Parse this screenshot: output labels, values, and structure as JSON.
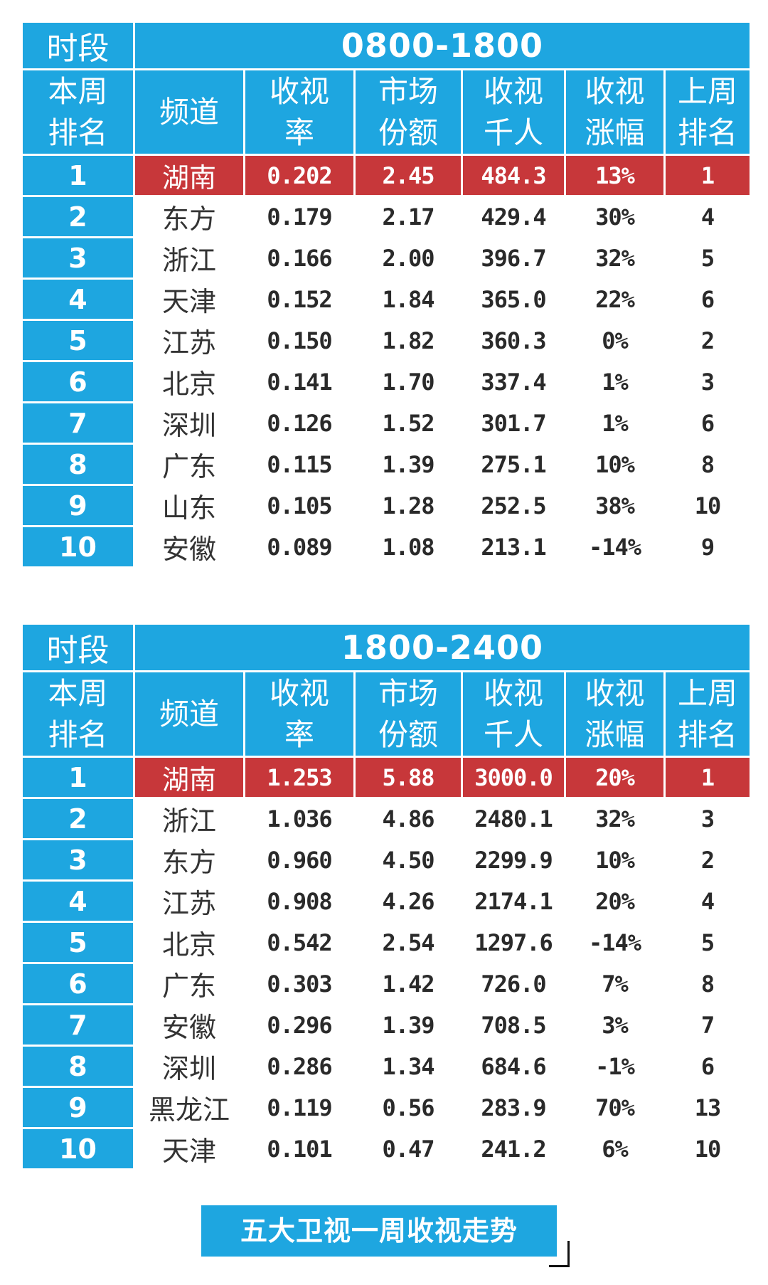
{
  "headers": {
    "slot": "时段",
    "rank_this_week": [
      "本周",
      "排名"
    ],
    "channel": "频道",
    "rating": [
      "收视",
      "率"
    ],
    "share": [
      "市场",
      "份额"
    ],
    "viewers": [
      "收视",
      "千人"
    ],
    "change": [
      "收视",
      "涨幅"
    ],
    "rank_last_week": [
      "上周",
      "排名"
    ]
  },
  "tables": [
    {
      "slot": "0800-1800",
      "rows": [
        {
          "rank": "1",
          "channel": "湖南",
          "rating": "0.202",
          "share": "2.45",
          "viewers": "484.3",
          "change": "13%",
          "last": "1"
        },
        {
          "rank": "2",
          "channel": "东方",
          "rating": "0.179",
          "share": "2.17",
          "viewers": "429.4",
          "change": "30%",
          "last": "4"
        },
        {
          "rank": "3",
          "channel": "浙江",
          "rating": "0.166",
          "share": "2.00",
          "viewers": "396.7",
          "change": "32%",
          "last": "5"
        },
        {
          "rank": "4",
          "channel": "天津",
          "rating": "0.152",
          "share": "1.84",
          "viewers": "365.0",
          "change": "22%",
          "last": "6"
        },
        {
          "rank": "5",
          "channel": "江苏",
          "rating": "0.150",
          "share": "1.82",
          "viewers": "360.3",
          "change": "0%",
          "last": "2"
        },
        {
          "rank": "6",
          "channel": "北京",
          "rating": "0.141",
          "share": "1.70",
          "viewers": "337.4",
          "change": "1%",
          "last": "3"
        },
        {
          "rank": "7",
          "channel": "深圳",
          "rating": "0.126",
          "share": "1.52",
          "viewers": "301.7",
          "change": "1%",
          "last": "6"
        },
        {
          "rank": "8",
          "channel": "广东",
          "rating": "0.115",
          "share": "1.39",
          "viewers": "275.1",
          "change": "10%",
          "last": "8"
        },
        {
          "rank": "9",
          "channel": "山东",
          "rating": "0.105",
          "share": "1.28",
          "viewers": "252.5",
          "change": "38%",
          "last": "10"
        },
        {
          "rank": "10",
          "channel": "安徽",
          "rating": "0.089",
          "share": "1.08",
          "viewers": "213.1",
          "change": "-14%",
          "last": "9"
        }
      ]
    },
    {
      "slot": "1800-2400",
      "rows": [
        {
          "rank": "1",
          "channel": "湖南",
          "rating": "1.253",
          "share": "5.88",
          "viewers": "3000.0",
          "change": "20%",
          "last": "1"
        },
        {
          "rank": "2",
          "channel": "浙江",
          "rating": "1.036",
          "share": "4.86",
          "viewers": "2480.1",
          "change": "32%",
          "last": "3"
        },
        {
          "rank": "3",
          "channel": "东方",
          "rating": "0.960",
          "share": "4.50",
          "viewers": "2299.9",
          "change": "10%",
          "last": "2"
        },
        {
          "rank": "4",
          "channel": "江苏",
          "rating": "0.908",
          "share": "4.26",
          "viewers": "2174.1",
          "change": "20%",
          "last": "4"
        },
        {
          "rank": "5",
          "channel": "北京",
          "rating": "0.542",
          "share": "2.54",
          "viewers": "1297.6",
          "change": "-14%",
          "last": "5"
        },
        {
          "rank": "6",
          "channel": "广东",
          "rating": "0.303",
          "share": "1.42",
          "viewers": "726.0",
          "change": "7%",
          "last": "8"
        },
        {
          "rank": "7",
          "channel": "安徽",
          "rating": "0.296",
          "share": "1.39",
          "viewers": "708.5",
          "change": "3%",
          "last": "7"
        },
        {
          "rank": "8",
          "channel": "深圳",
          "rating": "0.286",
          "share": "1.34",
          "viewers": "684.6",
          "change": "-1%",
          "last": "6"
        },
        {
          "rank": "9",
          "channel": "黑龙江",
          "rating": "0.119",
          "share": "0.56",
          "viewers": "283.9",
          "change": "70%",
          "last": "13"
        },
        {
          "rank": "10",
          "channel": "天津",
          "rating": "0.101",
          "share": "0.47",
          "viewers": "241.2",
          "change": "6%",
          "last": "10"
        }
      ]
    }
  ],
  "caption": "五大卫视一周收视走势",
  "colors": {
    "header_blue": "#1ea6e0",
    "highlight_red": "#c7373a",
    "text_dark": "#2a2a2a"
  }
}
